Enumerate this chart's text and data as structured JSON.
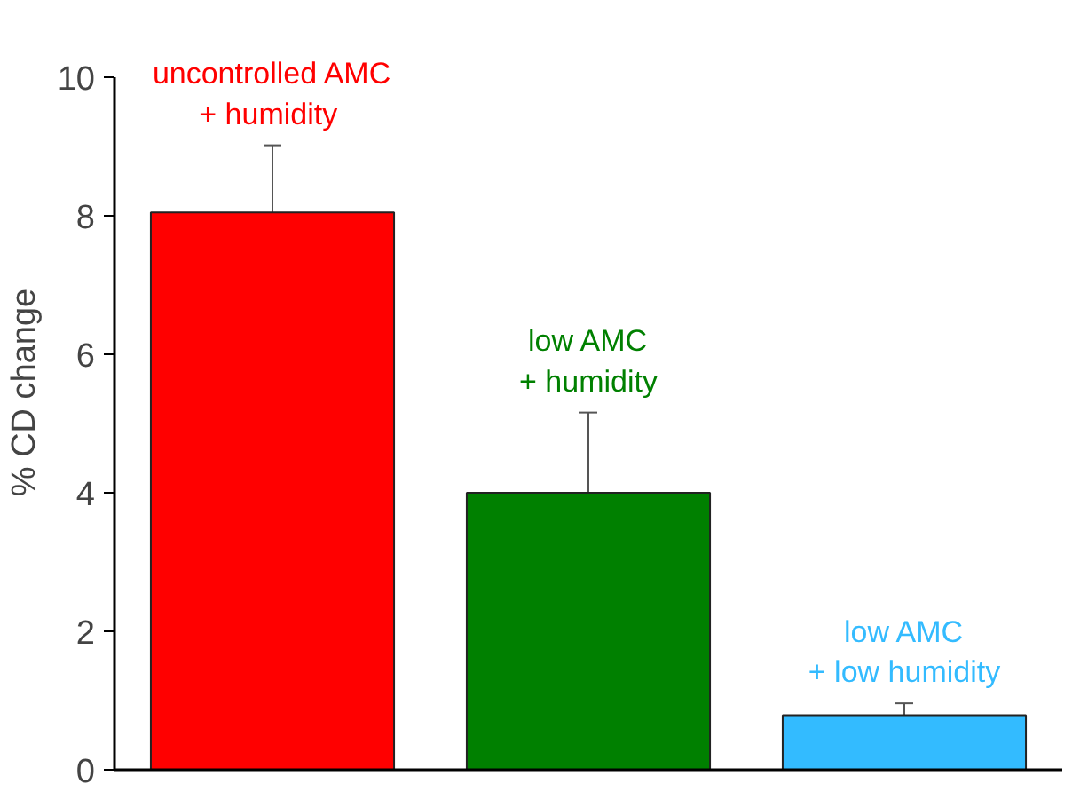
{
  "chart_data": {
    "type": "bar",
    "ylabel": "% CD change",
    "categories": [
      "uncontrolled AMC\n + humidity",
      "low AMC\n+ humidity",
      "low AMC\n+ low humidity"
    ],
    "values": [
      8.05,
      4.0,
      0.79
    ],
    "errors": [
      0.97,
      1.16,
      0.17
    ],
    "colors": [
      "#ff0000",
      "#008000",
      "#33bbff"
    ],
    "ylim": [
      0,
      10
    ],
    "yticks": [
      0,
      2,
      4,
      6,
      8,
      10
    ],
    "grid": false,
    "tick_labels": "y"
  }
}
